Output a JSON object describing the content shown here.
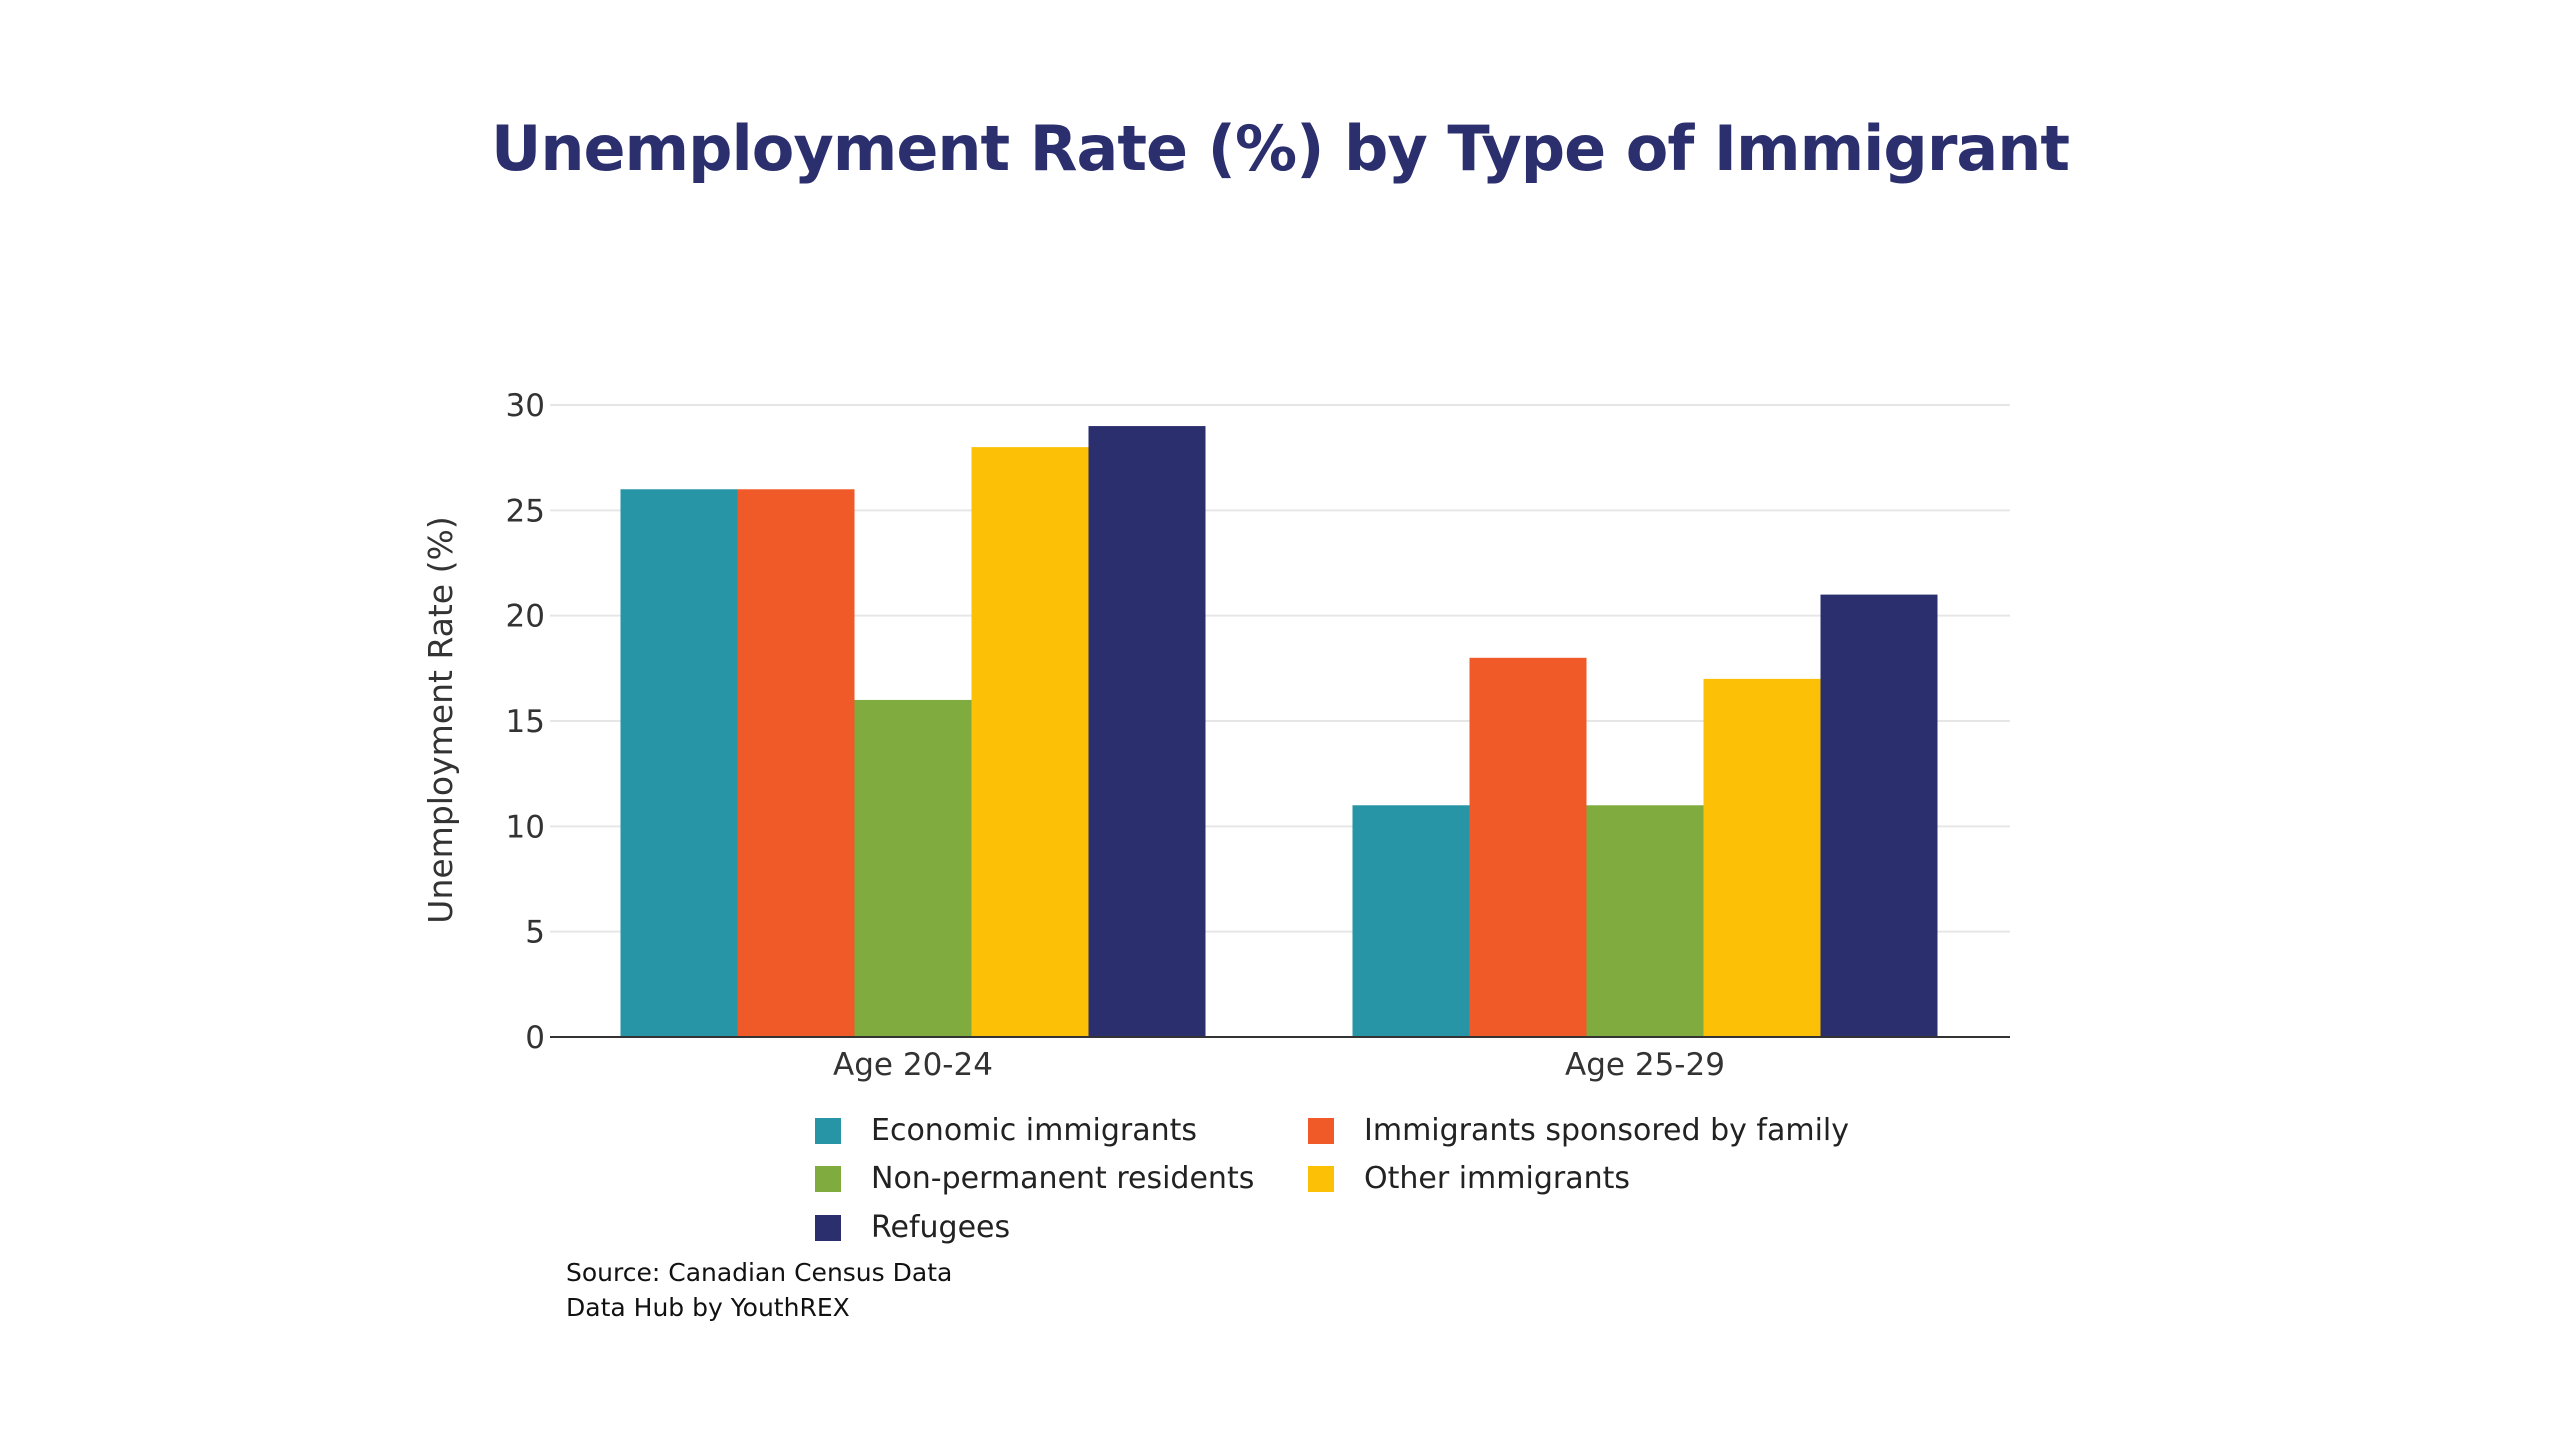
{
  "chart_data": {
    "type": "bar",
    "title": "Unemployment Rate (%) by Type of Immigrant",
    "ylabel": "Unemployment Rate (%)",
    "xlabel": "",
    "ylim": [
      0,
      30
    ],
    "yticks": [
      0,
      5,
      10,
      15,
      20,
      25,
      30
    ],
    "grid": true,
    "legend_position": "bottom",
    "categories": [
      "Age 20-24",
      "Age 25-29"
    ],
    "series": [
      {
        "name": "Economic immigrants",
        "color": "#2795a6",
        "values": [
          26,
          11
        ]
      },
      {
        "name": "Immigrants sponsored by family",
        "color": "#f05a28",
        "values": [
          26,
          18
        ]
      },
      {
        "name": "Non-permanent residents",
        "color": "#80ab3f",
        "values": [
          16,
          11
        ]
      },
      {
        "name": "Other immigrants",
        "color": "#fcc006",
        "values": [
          28,
          17
        ]
      },
      {
        "name": "Refugees",
        "color": "#2b2f6e",
        "values": [
          29,
          21
        ]
      }
    ]
  },
  "source": {
    "line1": "Source: Canadian Census Data",
    "line2": "Data Hub by YouthREX"
  }
}
